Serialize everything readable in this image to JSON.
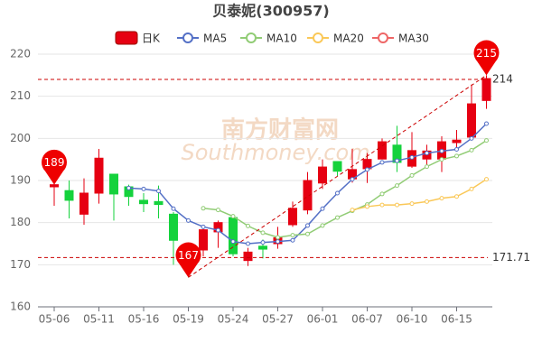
{
  "chart_data": {
    "type": "candlestick",
    "title": "贝泰妮(300957)",
    "watermark": "南方财富网",
    "watermark_sub": "Southmoney.com",
    "categories": [
      "05-06",
      null,
      null,
      "05-11",
      null,
      null,
      "05-16",
      null,
      null,
      "05-19",
      null,
      null,
      "05-24",
      null,
      null,
      "05-27",
      null,
      null,
      "06-01",
      null,
      null,
      "06-07",
      null,
      null,
      "06-10",
      null,
      null,
      "06-15",
      null,
      null
    ],
    "ylim": [
      160,
      220
    ],
    "yticks": [
      160,
      170,
      180,
      190,
      200,
      210,
      220
    ],
    "grid": true,
    "up_color": "#e60012",
    "down_color": "#14d23c",
    "series": [
      {
        "name": "日K",
        "open": [
          188.5,
          187.6,
          182,
          187,
          191.5,
          188.5,
          185.3,
          185,
          182,
          172,
          173.5,
          177.8,
          181.2,
          171,
          174.4,
          175,
          179.5,
          183,
          189.4,
          194.5,
          190.4,
          192.8,
          195.1,
          198.4,
          193.4,
          195.1,
          195.1,
          199,
          200.3,
          209
        ],
        "close": [
          189,
          185.3,
          187,
          195.3,
          186.8,
          186.2,
          184.5,
          184.3,
          175.8,
          171,
          178.3,
          180,
          172.6,
          173,
          173.7,
          176.4,
          183.4,
          190,
          193.2,
          192.2,
          192.6,
          195,
          199.2,
          194.3,
          197.1,
          197,
          199.2,
          199.6,
          208.2,
          214.2
        ],
        "high": [
          190,
          190,
          190.5,
          197.5,
          191.5,
          189,
          187,
          188.8,
          182.5,
          175,
          179,
          180.5,
          182,
          174,
          176,
          179,
          185,
          192,
          195,
          194.5,
          197.5,
          196.5,
          200,
          203,
          201.5,
          198.5,
          200.5,
          202,
          212.8,
          215
        ],
        "low": [
          184,
          181,
          179.5,
          184.5,
          180.5,
          184,
          182.5,
          181,
          170,
          167,
          172,
          174,
          172,
          169.7,
          171.5,
          173.8,
          179,
          182,
          188,
          191,
          189.5,
          189.4,
          195,
          192,
          193,
          193.5,
          192,
          197,
          199.8,
          207
        ]
      },
      {
        "name": "MA5",
        "color": "#5470c6",
        "values": [
          null,
          null,
          null,
          null,
          null,
          188.2,
          188,
          187.5,
          183.3,
          180.5,
          179,
          178.2,
          175.5,
          175,
          175.3,
          175.5,
          175.8,
          179.3,
          183.3,
          187,
          190.3,
          192.6,
          194.3,
          194.7,
          195.5,
          196.5,
          197,
          197.4,
          200,
          203.5
        ]
      },
      {
        "name": "MA10",
        "color": "#91cc75",
        "values": [
          null,
          null,
          null,
          null,
          null,
          null,
          null,
          null,
          null,
          null,
          183.4,
          183,
          181.5,
          179.2,
          177.6,
          176.5,
          177,
          177.3,
          179.3,
          181.2,
          182.8,
          184.3,
          186.8,
          188.8,
          191.2,
          193.3,
          195,
          195.8,
          197.2,
          199.5
        ]
      },
      {
        "name": "MA20",
        "color": "#fac858",
        "values": [
          null,
          null,
          null,
          null,
          null,
          null,
          null,
          null,
          null,
          null,
          null,
          null,
          null,
          null,
          null,
          null,
          null,
          null,
          null,
          null,
          183,
          183.8,
          184.2,
          184.2,
          184.5,
          185,
          185.8,
          186.2,
          188,
          190.3
        ]
      },
      {
        "name": "MA30",
        "color": "#ee6666",
        "values": [
          null,
          null,
          null,
          null,
          null,
          null,
          null,
          null,
          null,
          null,
          null,
          null,
          null,
          null,
          null,
          null,
          null,
          null,
          null,
          null,
          null,
          null,
          null,
          null,
          null,
          null,
          null,
          null,
          null,
          null
        ]
      }
    ],
    "ref_lines": [
      214,
      171.71
    ],
    "markers": [
      {
        "at": 0,
        "value": 189
      },
      {
        "at": 9,
        "value": 167
      },
      {
        "at": 29,
        "value": 215
      }
    ]
  }
}
